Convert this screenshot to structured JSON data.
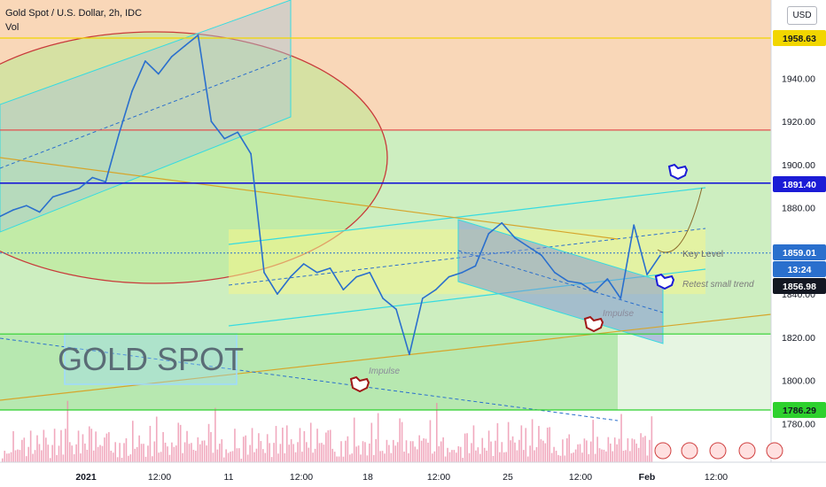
{
  "header": {
    "symbol_title": "Gold Spot / U.S. Dollar, 2h, IDC",
    "volume_label": "Vol",
    "currency_button": "USD"
  },
  "colors": {
    "zone_top": "#f9d7b8",
    "zone_mid": "#cdeec0",
    "zone_low": "#b7e8b0",
    "line_up": "#2a6fcd",
    "resistance_red": "#e35050",
    "level_yellow": "#f2d600",
    "level_blue": "#1b1bd6",
    "level_green": "#2ed12e",
    "channel_cyan": "#36dbe0",
    "volume_bar": "#ec8ca8"
  },
  "annotations": {
    "watermark": "GOLD SPOT",
    "key_level": "Key Level",
    "retest": "Retest small trend",
    "impulse_1": "Impulse",
    "impulse_2": "Impulse"
  },
  "chart_data": {
    "type": "line",
    "title": "Gold Spot / U.S. Dollar, 2h, IDC",
    "xlabel": "",
    "ylabel": "",
    "ylim": [
      1760,
      1970
    ],
    "x_ticks": [
      "2021",
      "12:00",
      "11",
      "12:00",
      "18",
      "12:00",
      "25",
      "12:00",
      "Feb",
      "12:00"
    ],
    "y_ticks": [
      1780,
      1800,
      1820,
      1840,
      1860,
      1880,
      1900,
      1920,
      1940
    ],
    "price_tags": [
      {
        "label": "1958.63",
        "value": 1958.63,
        "color": "#f2d600",
        "text_color": "#131722"
      },
      {
        "label": "1891.40",
        "value": 1891.4,
        "color": "#1b1bd6",
        "text_color": "#ffffff"
      },
      {
        "label": "1859.01",
        "value": 1859.01,
        "color": "#2a6fcd",
        "text_color": "#ffffff"
      },
      {
        "label": "13:24",
        "value": 1852.4,
        "color": "#2a6fcd",
        "text_color": "#ffffff"
      },
      {
        "label": "1856.98",
        "value": 1846.3,
        "color": "#131722",
        "text_color": "#ffffff"
      },
      {
        "label": "1786.29",
        "value": 1786.29,
        "color": "#2ed12e",
        "text_color": "#131722"
      }
    ],
    "levels": [
      {
        "value": 1958.63,
        "color": "#f2d600"
      },
      {
        "value": 1916.0,
        "color": "#e35050"
      },
      {
        "value": 1891.4,
        "color": "#1b1bd6"
      },
      {
        "value": 1821.5,
        "color": "#2ed12e"
      },
      {
        "value": 1786.29,
        "color": "#2ed12e"
      }
    ],
    "series": [
      {
        "x": [
          0,
          2,
          4,
          6,
          8,
          10,
          12,
          14,
          16,
          18,
          20,
          22,
          24,
          26,
          28,
          30,
          32,
          34,
          36,
          38,
          40,
          42,
          44,
          46,
          48,
          50,
          52,
          54,
          56,
          58,
          60,
          62,
          64,
          66,
          68,
          70,
          72,
          74,
          76,
          78,
          80,
          82,
          84,
          86,
          88,
          90,
          92,
          94,
          96,
          98,
          100
        ],
        "values": [
          1876,
          1879,
          1881,
          1878,
          1885,
          1887,
          1889,
          1894,
          1892,
          1914,
          1934,
          1948,
          1942,
          1950,
          1955,
          1960,
          1920,
          1912,
          1915,
          1905,
          1850,
          1840,
          1848,
          1854,
          1850,
          1852,
          1842,
          1848,
          1850,
          1838,
          1833,
          1812,
          1838,
          1842,
          1848,
          1850,
          1853,
          1868,
          1873,
          1866,
          1862,
          1858,
          1850,
          1846,
          1845,
          1841,
          1847,
          1838,
          1872,
          1849,
          1858
        ]
      }
    ],
    "volume": [
      12,
      18,
      9,
      22,
      14,
      30,
      25,
      16,
      11,
      40,
      28,
      19,
      24,
      33,
      21,
      17,
      26,
      38,
      15,
      29,
      44,
      20,
      13,
      27,
      35,
      18,
      23,
      31,
      16,
      42,
      55,
      36,
      19,
      25,
      28,
      33,
      22,
      39,
      18,
      26,
      45,
      30,
      21,
      35,
      48,
      27,
      17,
      62,
      40,
      29,
      24
    ]
  }
}
